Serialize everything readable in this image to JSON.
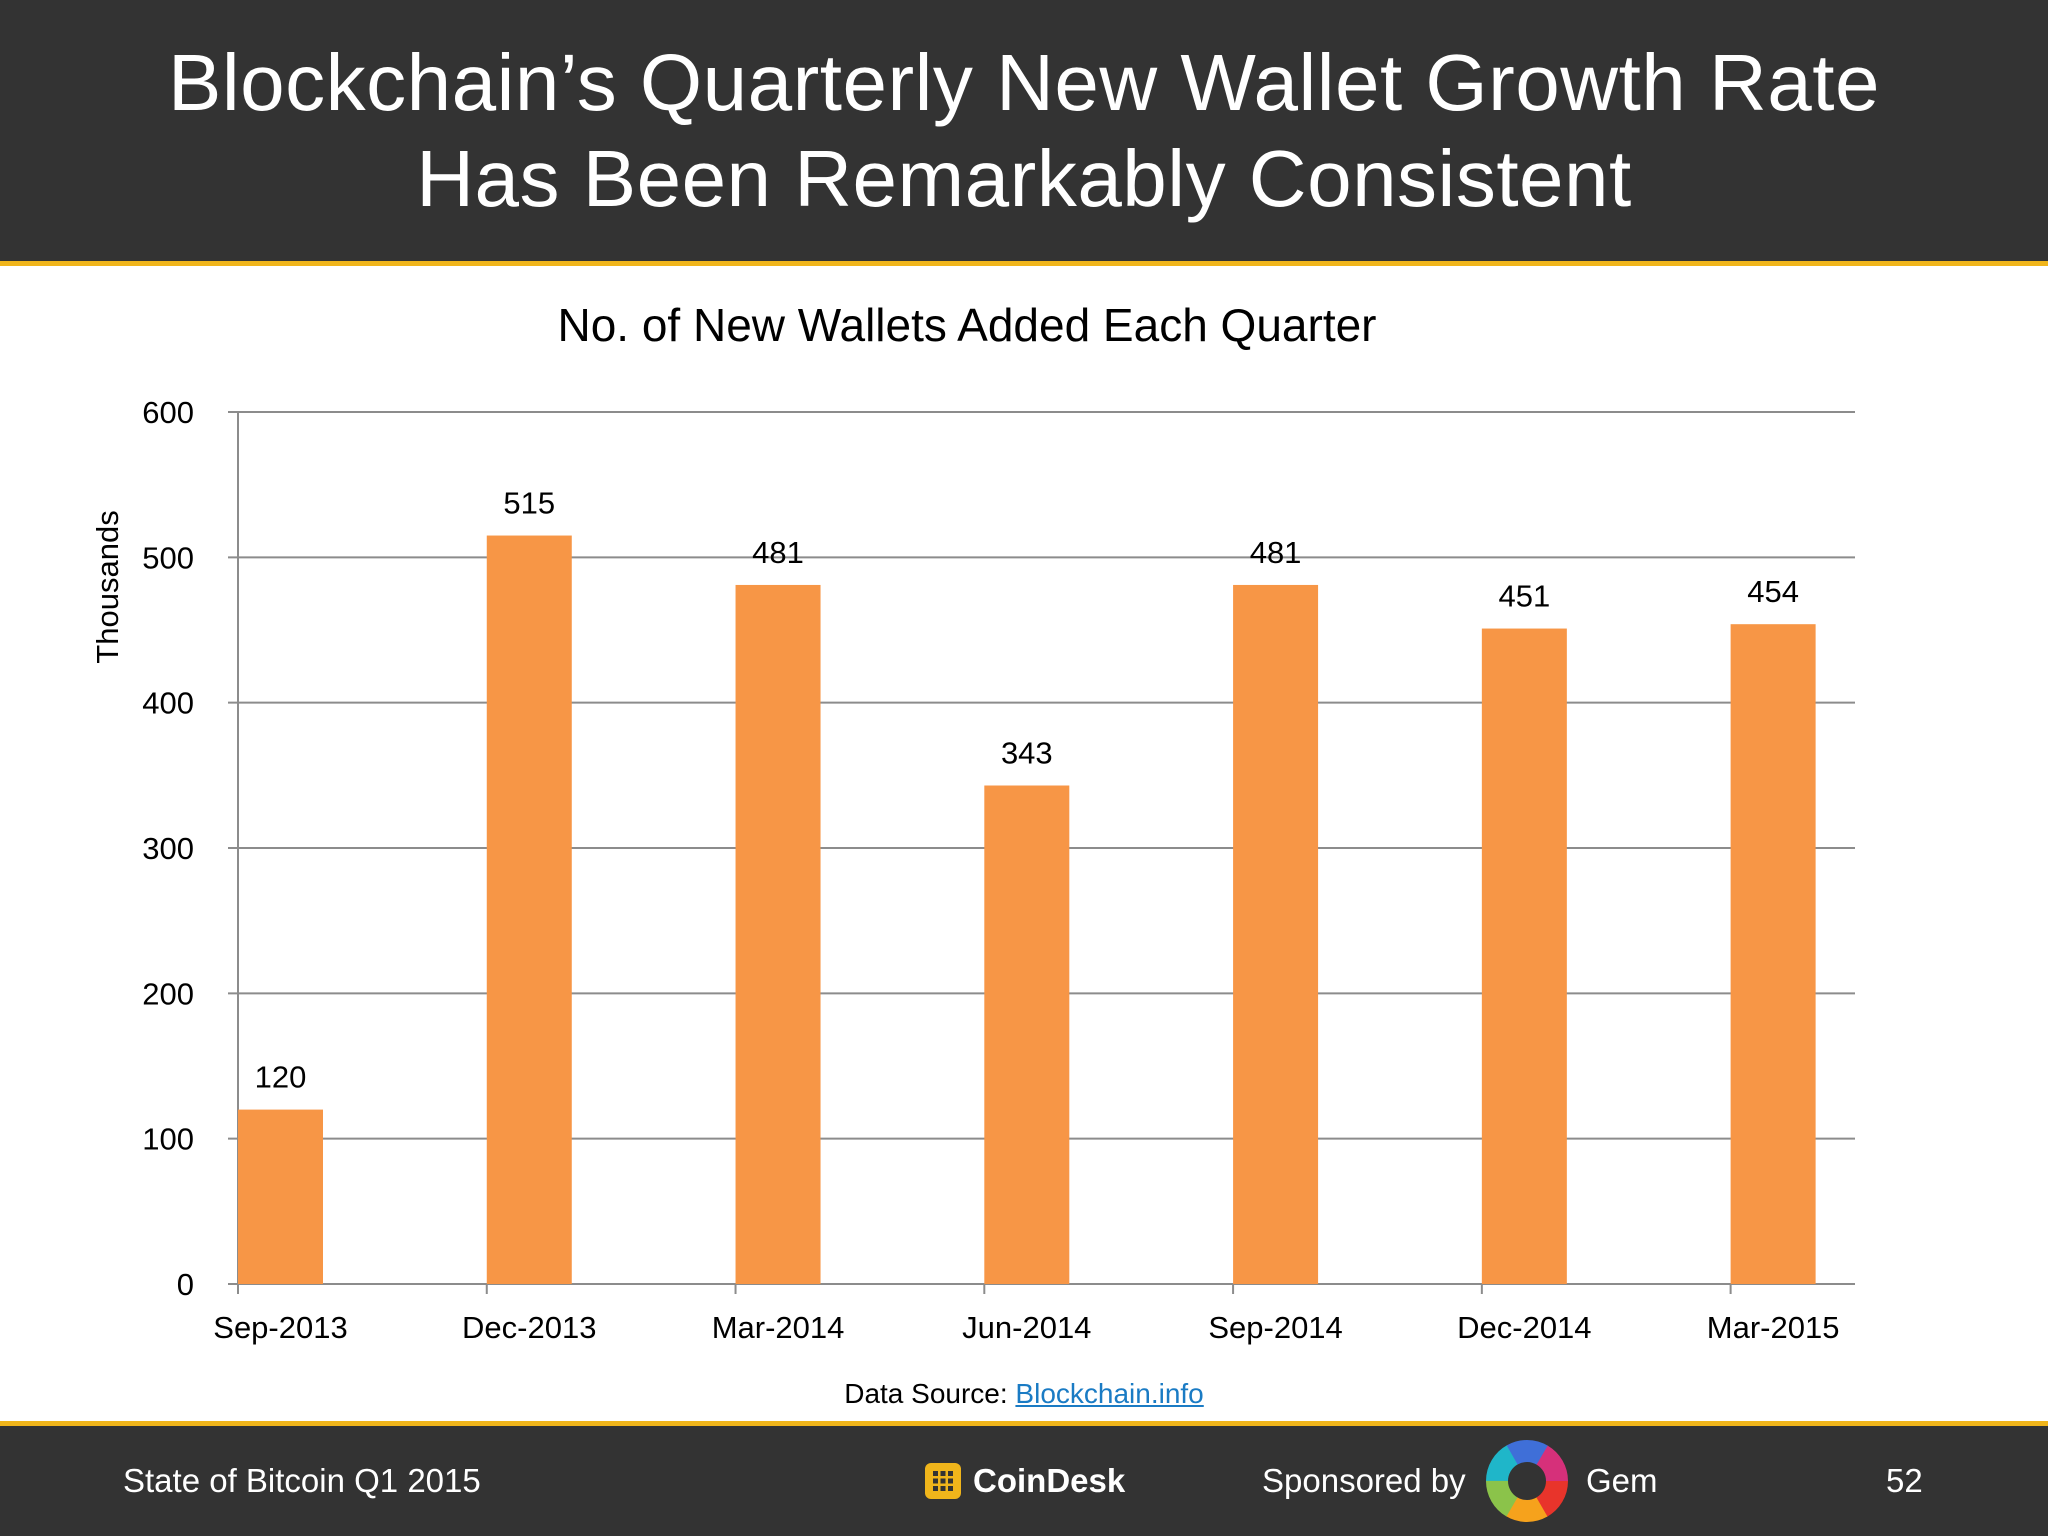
{
  "header": {
    "title_line1": "Blockchain’s Quarterly New Wallet Growth Rate",
    "title_line2": "Has Been Remarkably Consistent"
  },
  "chart_data": {
    "type": "bar",
    "title": "No. of New Wallets Added Each Quarter",
    "xlabel": "",
    "ylabel": "Thousands",
    "categories": [
      "Sep-2013",
      "Dec-2013",
      "Mar-2014",
      "Jun-2014",
      "Sep-2014",
      "Dec-2014",
      "Mar-2015"
    ],
    "values": [
      120,
      515,
      481,
      343,
      481,
      451,
      454
    ],
    "data_labels": [
      "120",
      "515",
      "481",
      "343",
      "481",
      "451",
      "454"
    ],
    "ylim": [
      0,
      600
    ],
    "yticks": [
      0,
      100,
      200,
      300,
      400,
      500,
      600
    ],
    "grid": true,
    "legend": "none",
    "bar_color": "#f79646"
  },
  "source": {
    "prefix": "Data Source: ",
    "link_text": "Blockchain.info"
  },
  "footer": {
    "report": "State of Bitcoin Q1 2015",
    "brand": "CoinDesk",
    "sponsored_by": "Sponsored by",
    "sponsor": "Gem",
    "page_number": "52"
  },
  "colors": {
    "header_bg": "#333333",
    "accent_line": "#f0b51b",
    "link": "#1a7bc4"
  },
  "icons": {
    "brand_logo": "coindesk-logo-icon",
    "sponsor_logo": "gem-ring-logo-icon"
  }
}
